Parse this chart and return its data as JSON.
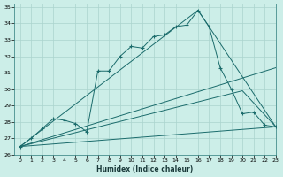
{
  "xlabel": "Humidex (Indice chaleur)",
  "xlim": [
    -0.5,
    23
  ],
  "ylim": [
    26,
    35.2
  ],
  "yticks": [
    26,
    27,
    28,
    29,
    30,
    31,
    32,
    33,
    34,
    35
  ],
  "xticks": [
    0,
    1,
    2,
    3,
    4,
    5,
    6,
    7,
    8,
    9,
    10,
    11,
    12,
    13,
    14,
    15,
    16,
    17,
    18,
    19,
    20,
    21,
    22,
    23
  ],
  "bg_color": "#cceee8",
  "grid_color": "#aad4ce",
  "line_color": "#1a6b6b",
  "line1_x": [
    0,
    1,
    2,
    3,
    4,
    5,
    6,
    7,
    8,
    9,
    10,
    11,
    12,
    13,
    14,
    15,
    16,
    17,
    18,
    19,
    20,
    21,
    22,
    23
  ],
  "line1_y": [
    26.5,
    27.0,
    27.6,
    28.2,
    28.1,
    27.9,
    27.4,
    31.1,
    31.1,
    32.0,
    32.6,
    32.5,
    33.2,
    33.3,
    33.8,
    33.9,
    34.8,
    33.8,
    31.3,
    30.0,
    28.5,
    28.6,
    27.8,
    27.7
  ],
  "line2_x": [
    0,
    16,
    17,
    23
  ],
  "line2_y": [
    26.5,
    34.8,
    33.8,
    27.7
  ],
  "line3_x": [
    0,
    23
  ],
  "line3_y": [
    26.5,
    31.3
  ],
  "line4_x": [
    0,
    20,
    23
  ],
  "line4_y": [
    26.5,
    29.9,
    27.7
  ],
  "line5_x": [
    0,
    23
  ],
  "line5_y": [
    26.5,
    27.7
  ]
}
